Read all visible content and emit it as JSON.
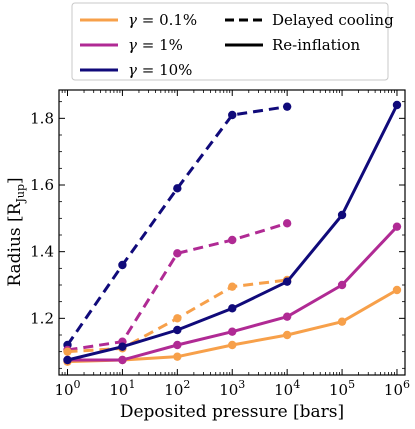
{
  "chart_data": {
    "type": "line",
    "xlabel": "Deposited pressure [bars]",
    "ylabel_text": "Radius [R",
    "ylabel_sub": "Jup",
    "ylabel_close": "]",
    "xscale": "log",
    "xlim": [
      0.7,
      1400000
    ],
    "ylim": [
      1.03,
      1.885
    ],
    "grid": false,
    "legend_position": "top-outside",
    "x_ticks": [
      {
        "value": 1,
        "base": "10",
        "exp": "0"
      },
      {
        "value": 10,
        "base": "10",
        "exp": "1"
      },
      {
        "value": 100,
        "base": "10",
        "exp": "2"
      },
      {
        "value": 1000,
        "base": "10",
        "exp": "3"
      },
      {
        "value": 10000,
        "base": "10",
        "exp": "4"
      },
      {
        "value": 100000,
        "base": "10",
        "exp": "5"
      },
      {
        "value": 1000000,
        "base": "10",
        "exp": "6"
      }
    ],
    "y_ticks": [
      {
        "value": 1.2,
        "label": "1.2"
      },
      {
        "value": 1.4,
        "label": "1.4"
      },
      {
        "value": 1.6,
        "label": "1.6"
      },
      {
        "value": 1.8,
        "label": "1.8"
      }
    ],
    "series": [
      {
        "name": "γ = 10%",
        "style": "dashed",
        "color": "#100a7a",
        "x": [
          1,
          10,
          100,
          1000,
          10000
        ],
        "y": [
          1.12,
          1.36,
          1.59,
          1.81,
          1.835
        ]
      },
      {
        "name": "γ = 1%",
        "style": "dashed",
        "color": "#b02a94",
        "x": [
          1,
          10,
          100,
          1000,
          10000
        ],
        "y": [
          1.105,
          1.13,
          1.395,
          1.435,
          1.485
        ]
      },
      {
        "name": "γ = 0.1%",
        "style": "dashed",
        "color": "#f7a04a",
        "x": [
          1,
          10,
          100,
          1000,
          10000
        ],
        "y": [
          1.1,
          1.11,
          1.2,
          1.295,
          1.315
        ]
      },
      {
        "name": "γ = 0.1%",
        "style": "solid",
        "color": "#f7a04a",
        "x": [
          1,
          10,
          100,
          1000,
          10000,
          100000,
          1000000
        ],
        "y": [
          1.07,
          1.075,
          1.085,
          1.12,
          1.15,
          1.19,
          1.285
        ]
      },
      {
        "name": "γ = 1%",
        "style": "solid",
        "color": "#b02a94",
        "x": [
          1,
          10,
          100,
          1000,
          10000,
          100000,
          1000000
        ],
        "y": [
          1.075,
          1.075,
          1.12,
          1.16,
          1.205,
          1.3,
          1.475
        ]
      },
      {
        "name": "γ = 10%",
        "style": "solid",
        "color": "#100a7a",
        "x": [
          1,
          10,
          100,
          1000,
          10000,
          100000,
          1000000
        ],
        "y": [
          1.075,
          1.115,
          1.165,
          1.23,
          1.31,
          1.51,
          1.84
        ]
      }
    ],
    "legend": [
      {
        "prefix": "γ",
        "text": " = 0.1%",
        "color": "#f7a04a",
        "style": "solid"
      },
      {
        "prefix": "γ",
        "text": " = 1%",
        "color": "#b02a94",
        "style": "solid"
      },
      {
        "prefix": "γ",
        "text": " = 10%",
        "color": "#100a7a",
        "style": "solid"
      },
      {
        "prefix": "",
        "text": "Delayed cooling",
        "color": "#000000",
        "style": "dashed"
      },
      {
        "prefix": "",
        "text": "Re-inflation",
        "color": "#000000",
        "style": "solid"
      }
    ]
  }
}
